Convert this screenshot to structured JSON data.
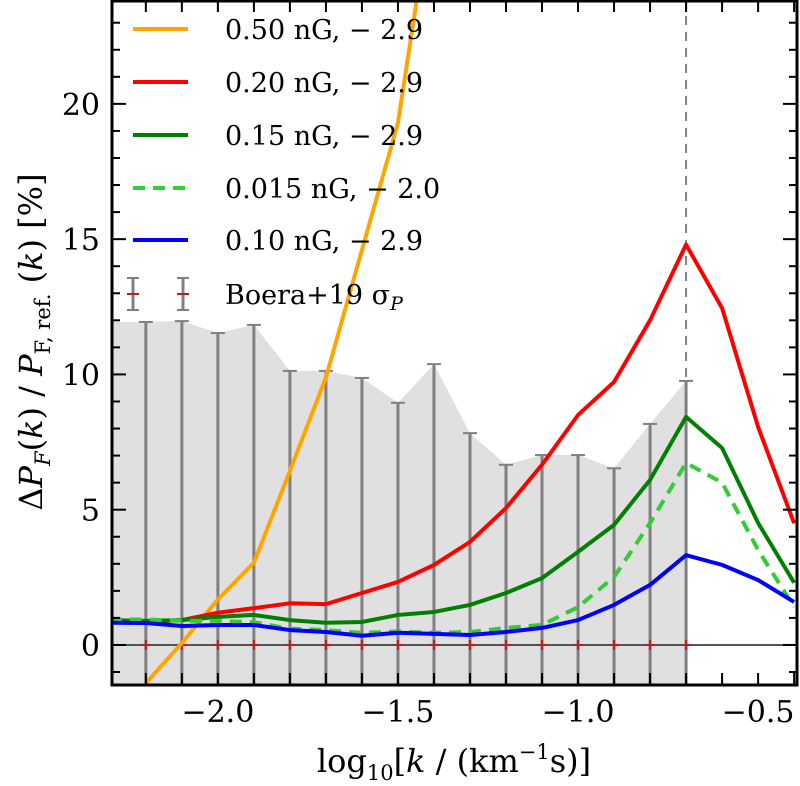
{
  "chart_data": {
    "type": "line",
    "xlabel_parts": [
      [
        "log",
        ""
      ],
      [
        "10",
        "sub"
      ],
      [
        "[",
        ""
      ],
      [
        "k",
        "it"
      ],
      [
        " / (km",
        ""
      ],
      [
        "−1",
        "sup"
      ],
      [
        "s)]",
        ""
      ]
    ],
    "ylabel_parts": [
      [
        "Δ",
        ""
      ],
      [
        "P",
        "it"
      ],
      [
        "F",
        "subit"
      ],
      [
        "(",
        ""
      ],
      [
        "k",
        "it"
      ],
      [
        ") / ",
        ""
      ],
      [
        "P",
        "it"
      ],
      [
        "F, ref.",
        "sub"
      ],
      [
        " (",
        ""
      ],
      [
        "k",
        "it"
      ],
      [
        ")  [%]",
        ""
      ]
    ],
    "xlim": [
      -2.294,
      -0.392
    ],
    "ylim": [
      -1.48,
      23.84
    ],
    "xticks": [
      -2.0,
      -1.5,
      -1.0,
      -0.5
    ],
    "xtick_labels": [
      "−2.0",
      "−1.5",
      "−1.0",
      "−0.5"
    ],
    "yticks": [
      0,
      5,
      10,
      15,
      20
    ],
    "ytick_labels": [
      "0",
      "5",
      "10",
      "15",
      "20"
    ],
    "x_minor_step": 0.1,
    "y_minor_step": 1,
    "legend_position": "top-left",
    "reference_line_x": -0.7,
    "series": [
      {
        "name": "0.50 nG, − 2.9",
        "color": "#ffa500",
        "dash": false,
        "x": [
          -2.2,
          -2.1,
          -2.0,
          -1.9,
          -1.8,
          -1.7,
          -1.6,
          -1.5,
          -1.4
        ],
        "y": [
          -1.41,
          0.07,
          1.68,
          3.04,
          6.43,
          9.89,
          14.6,
          19.3,
          28.0
        ]
      },
      {
        "name": "0.20 nG, − 2.9",
        "color": "#ff0000",
        "dash": false,
        "x": [
          -2.3,
          -2.2,
          -2.1,
          -2.0,
          -1.9,
          -1.8,
          -1.7,
          -1.6,
          -1.5,
          -1.4,
          -1.3,
          -1.2,
          -1.1,
          -1.0,
          -0.9,
          -0.8,
          -0.7,
          -0.6,
          -0.5,
          -0.4
        ],
        "y": [
          0.84,
          0.85,
          0.92,
          1.19,
          1.36,
          1.54,
          1.51,
          1.92,
          2.33,
          2.96,
          3.81,
          5.06,
          6.66,
          8.5,
          9.72,
          12.0,
          14.8,
          12.45,
          8.06,
          4.5
        ]
      },
      {
        "name": "0.15 nG, − 2.9",
        "color": "#008000",
        "dash": false,
        "x": [
          -2.3,
          -2.2,
          -2.1,
          -2.0,
          -1.9,
          -1.8,
          -1.7,
          -1.6,
          -1.5,
          -1.4,
          -1.3,
          -1.2,
          -1.1,
          -1.0,
          -0.9,
          -0.8,
          -0.7,
          -0.6,
          -0.5,
          -0.4
        ],
        "y": [
          0.92,
          0.89,
          0.92,
          1.04,
          1.11,
          0.92,
          0.82,
          0.85,
          1.11,
          1.22,
          1.48,
          1.92,
          2.47,
          3.44,
          4.44,
          6.1,
          8.43,
          7.28,
          4.51,
          2.3
        ]
      },
      {
        "name": "0.015 nG, − 2.0",
        "color": "#32cd32",
        "dash": true,
        "x": [
          -2.3,
          -2.2,
          -2.1,
          -2.0,
          -1.9,
          -1.8,
          -1.7,
          -1.6,
          -1.5,
          -1.4,
          -1.3,
          -1.2,
          -1.1,
          -1.0,
          -0.9,
          -0.8,
          -0.7,
          -0.6,
          -0.5,
          -0.4
        ],
        "y": [
          0.95,
          0.94,
          0.89,
          0.89,
          0.84,
          0.6,
          0.55,
          0.45,
          0.5,
          0.45,
          0.48,
          0.63,
          0.74,
          1.4,
          2.51,
          4.51,
          6.73,
          6.0,
          3.51,
          1.4
        ]
      },
      {
        "name": "0.10 nG, − 2.9",
        "color": "#0000ff",
        "dash": false,
        "x": [
          -2.3,
          -2.2,
          -2.1,
          -2.0,
          -1.9,
          -1.8,
          -1.7,
          -1.6,
          -1.5,
          -1.4,
          -1.3,
          -1.2,
          -1.1,
          -1.0,
          -0.9,
          -0.8,
          -0.7,
          -0.6,
          -0.5,
          -0.4
        ],
        "y": [
          0.82,
          0.81,
          0.7,
          0.74,
          0.74,
          0.55,
          0.48,
          0.34,
          0.45,
          0.41,
          0.37,
          0.48,
          0.63,
          0.92,
          1.48,
          2.22,
          3.32,
          2.96,
          2.4,
          1.59
        ]
      }
    ],
    "errorbars": {
      "name": "Boera+19 σ",
      "name_sub": "P",
      "bar_color": "#808080",
      "marker_color": "#b22222",
      "fill_color": "#e0e0e0",
      "x": [
        -2.2,
        -2.1,
        -2.0,
        -1.9,
        -1.8,
        -1.7,
        -1.6,
        -1.5,
        -1.4,
        -1.3,
        -1.2,
        -1.1,
        -1.0,
        -0.9,
        -0.8,
        -0.7
      ],
      "y": [
        0,
        0,
        0,
        0,
        0,
        0,
        0,
        0,
        0,
        0,
        0,
        0,
        0,
        0,
        0,
        0
      ],
      "sigma": [
        11.94,
        11.97,
        11.53,
        11.83,
        10.13,
        10.13,
        9.87,
        8.95,
        10.38,
        7.83,
        6.66,
        7.02,
        7.02,
        6.53,
        8.17,
        9.76
      ]
    }
  }
}
